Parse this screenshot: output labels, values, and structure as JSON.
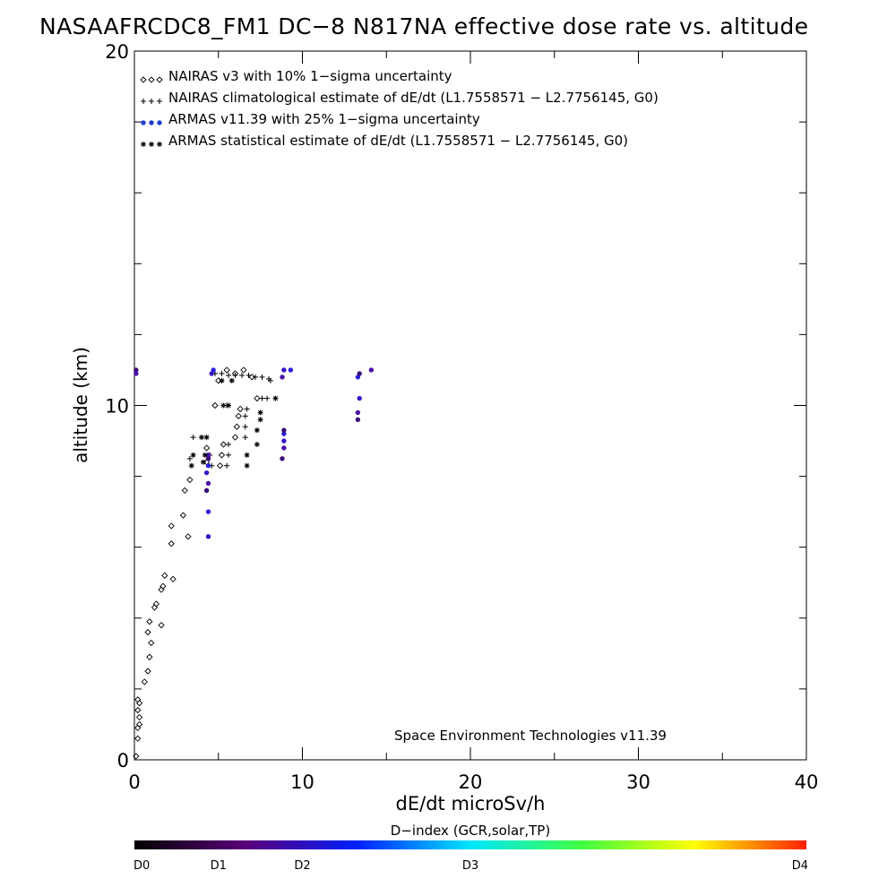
{
  "chart_data": {
    "type": "scatter",
    "title": "NASAAFRCDC8_FM1 DC−8   N817NA effective dose rate vs. altitude",
    "xlabel": "dE/dt microSv/h",
    "ylabel": "altitude (km)",
    "xlim": [
      0,
      40
    ],
    "ylim": [
      0,
      20
    ],
    "x_tick_labels": [
      "0",
      "10",
      "20",
      "30",
      "40"
    ],
    "y_tick_labels": [
      "0",
      "10",
      "20"
    ],
    "grid": false,
    "legend_position": "top-left",
    "annotation": "Space Environment Technologies v11.39",
    "series": [
      {
        "name": "NAIRAS v3 with 10% 1−sigma uncertainty",
        "marker": "diamond",
        "color": "#000000",
        "points": [
          [
            0.1,
            0.1
          ],
          [
            0.2,
            0.6
          ],
          [
            0.2,
            0.9
          ],
          [
            0.3,
            1.0
          ],
          [
            0.3,
            1.2
          ],
          [
            0.2,
            1.4
          ],
          [
            0.3,
            1.6
          ],
          [
            0.2,
            1.7
          ],
          [
            0.6,
            2.2
          ],
          [
            0.8,
            2.5
          ],
          [
            0.9,
            2.9
          ],
          [
            1.0,
            3.3
          ],
          [
            0.8,
            3.6
          ],
          [
            0.9,
            3.9
          ],
          [
            1.6,
            3.8
          ],
          [
            1.2,
            4.3
          ],
          [
            1.3,
            4.4
          ],
          [
            1.6,
            4.8
          ],
          [
            1.7,
            4.9
          ],
          [
            2.3,
            5.1
          ],
          [
            1.8,
            5.2
          ],
          [
            2.2,
            6.1
          ],
          [
            3.2,
            6.3
          ],
          [
            2.2,
            6.6
          ],
          [
            2.9,
            6.9
          ],
          [
            3.0,
            7.6
          ],
          [
            3.3,
            7.9
          ],
          [
            4.3,
            8.4
          ],
          [
            4.3,
            8.8
          ],
          [
            5.1,
            8.3
          ],
          [
            5.2,
            8.6
          ],
          [
            5.3,
            8.9
          ],
          [
            6.0,
            9.1
          ],
          [
            6.1,
            9.4
          ],
          [
            6.2,
            9.7
          ],
          [
            6.3,
            9.9
          ],
          [
            4.8,
            10.0
          ],
          [
            7.3,
            10.2
          ],
          [
            5.0,
            10.7
          ],
          [
            5.5,
            11.0
          ],
          [
            6.0,
            10.9
          ],
          [
            6.5,
            11.0
          ],
          [
            7.0,
            10.8
          ]
        ]
      },
      {
        "name": "NAIRAS climatological estimate of dE/dt (L1.7558571 − L2.7756145, G0)",
        "marker": "plus",
        "color": "#000000",
        "points": [
          [
            3.5,
            9.1
          ],
          [
            3.3,
            8.5
          ],
          [
            4.6,
            8.3
          ],
          [
            4.5,
            8.6
          ],
          [
            5.5,
            8.3
          ],
          [
            5.6,
            8.6
          ],
          [
            5.6,
            8.9
          ],
          [
            6.6,
            9.1
          ],
          [
            6.6,
            9.4
          ],
          [
            6.6,
            9.7
          ],
          [
            6.7,
            9.9
          ],
          [
            7.6,
            10.2
          ],
          [
            7.9,
            10.2
          ],
          [
            8.1,
            10.7
          ],
          [
            5.5,
            10.0
          ],
          [
            4.8,
            10.9
          ],
          [
            5.2,
            10.9
          ],
          [
            5.6,
            10.85
          ],
          [
            6.0,
            10.85
          ],
          [
            6.4,
            10.85
          ],
          [
            6.8,
            10.85
          ],
          [
            7.2,
            10.8
          ],
          [
            7.6,
            10.8
          ],
          [
            8.0,
            10.75
          ]
        ]
      },
      {
        "name": "ARMAS v11.39 with 25% 1−sigma uncertainty",
        "marker": "dot",
        "color": "#1f3fd0",
        "points": [
          [
            0.1,
            11.0
          ],
          [
            0.1,
            10.9
          ],
          [
            4.4,
            6.3
          ],
          [
            4.4,
            7.0
          ],
          [
            4.3,
            7.6
          ],
          [
            4.4,
            7.8
          ],
          [
            4.3,
            8.1
          ],
          [
            4.4,
            8.3
          ],
          [
            4.4,
            8.5
          ],
          [
            4.4,
            8.6
          ],
          [
            4.6,
            10.9
          ],
          [
            4.7,
            11.0
          ],
          [
            8.8,
            8.5
          ],
          [
            8.9,
            8.8
          ],
          [
            8.9,
            9.0
          ],
          [
            8.9,
            9.2
          ],
          [
            8.9,
            9.3
          ],
          [
            8.8,
            10.8
          ],
          [
            8.9,
            11.0
          ],
          [
            9.3,
            11.0
          ],
          [
            13.3,
            9.6
          ],
          [
            13.3,
            9.8
          ],
          [
            13.4,
            10.2
          ],
          [
            13.3,
            10.8
          ],
          [
            13.4,
            10.9
          ],
          [
            14.1,
            11.0
          ]
        ]
      },
      {
        "name": "ARMAS statistical estimate of dE/dt (L1.7558571 − L2.7756145, G0)",
        "marker": "asterisk",
        "color": "#000000",
        "points": [
          [
            4.0,
            9.1
          ],
          [
            4.3,
            9.1
          ],
          [
            3.5,
            8.6
          ],
          [
            3.4,
            8.3
          ],
          [
            4.1,
            8.4
          ],
          [
            4.2,
            8.6
          ],
          [
            6.7,
            8.3
          ],
          [
            6.7,
            8.6
          ],
          [
            7.3,
            8.9
          ],
          [
            7.3,
            9.3
          ],
          [
            7.5,
            9.6
          ],
          [
            7.5,
            9.8
          ],
          [
            5.3,
            10.0
          ],
          [
            5.6,
            10.0
          ],
          [
            8.4,
            10.2
          ],
          [
            5.2,
            10.7
          ],
          [
            5.8,
            10.7
          ]
        ]
      }
    ],
    "colorbar": {
      "title": "D−index (GCR,solar,TP)",
      "labels": [
        "D0",
        "D1",
        "D2",
        "D3",
        "D4"
      ],
      "label_fractions": [
        0.0,
        0.125,
        0.25,
        0.5,
        1.0
      ],
      "colors": [
        "#000000",
        "#5a007a",
        "#0020ff",
        "#00e6ff",
        "#40ff40",
        "#ffff00",
        "#ff2000"
      ]
    }
  }
}
